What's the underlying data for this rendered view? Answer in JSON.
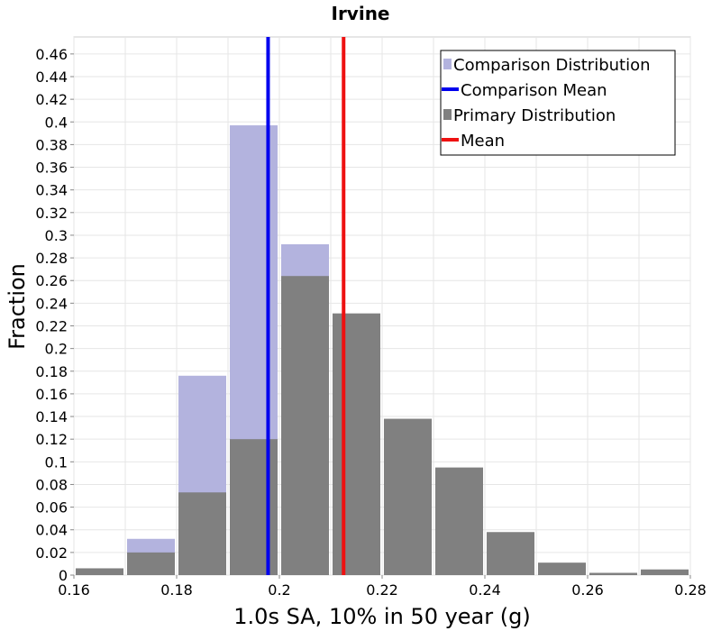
{
  "chart_data": {
    "type": "bar",
    "title": "Irvine",
    "xlabel": "1.0s SA, 10% in 50 year (g)",
    "ylabel": "Fraction",
    "xlim": [
      0.16,
      0.28
    ],
    "ylim": [
      0,
      0.475
    ],
    "x_ticks": [
      "0.16",
      "0.18",
      "0.2",
      "0.22",
      "0.24",
      "0.26",
      "0.28"
    ],
    "y_ticks": [
      "0",
      "0.02",
      "0.04",
      "0.06",
      "0.08",
      "0.1",
      "0.12",
      "0.14",
      "0.16",
      "0.18",
      "0.2",
      "0.22",
      "0.24",
      "0.26",
      "0.28",
      "0.3",
      "0.32",
      "0.34",
      "0.36",
      "0.38",
      "0.4",
      "0.42",
      "0.44",
      "0.46"
    ],
    "grid": true,
    "legend_position": "top-right",
    "bin_width": 0.01,
    "series": [
      {
        "name": "Comparison Distribution",
        "kind": "histogram",
        "color": "#b3b3de",
        "bins": [
          {
            "x0": 0.17,
            "value": 0.032
          },
          {
            "x0": 0.18,
            "value": 0.176
          },
          {
            "x0": 0.19,
            "value": 0.397
          },
          {
            "x0": 0.2,
            "value": 0.292
          }
        ]
      },
      {
        "name": "Primary Distribution",
        "kind": "histogram",
        "color": "#808080",
        "bins": [
          {
            "x0": 0.16,
            "value": 0.006
          },
          {
            "x0": 0.17,
            "value": 0.02
          },
          {
            "x0": 0.18,
            "value": 0.073
          },
          {
            "x0": 0.19,
            "value": 0.12
          },
          {
            "x0": 0.2,
            "value": 0.264
          },
          {
            "x0": 0.21,
            "value": 0.231
          },
          {
            "x0": 0.22,
            "value": 0.138
          },
          {
            "x0": 0.23,
            "value": 0.095
          },
          {
            "x0": 0.24,
            "value": 0.038
          },
          {
            "x0": 0.25,
            "value": 0.011
          },
          {
            "x0": 0.26,
            "value": 0.002
          },
          {
            "x0": 0.27,
            "value": 0.005
          }
        ]
      },
      {
        "name": "Comparison Mean",
        "kind": "vline",
        "color": "#0000ee",
        "x": 0.1978
      },
      {
        "name": "Mean",
        "kind": "vline",
        "color": "#ee1111",
        "x": 0.2125
      }
    ],
    "legend": [
      {
        "label": "Comparison Distribution",
        "symbol": "square",
        "color": "#b3b3de"
      },
      {
        "label": "Comparison Mean",
        "symbol": "line",
        "color": "#0000ee"
      },
      {
        "label": "Primary Distribution",
        "symbol": "square",
        "color": "#808080"
      },
      {
        "label": "Mean",
        "symbol": "line",
        "color": "#ee1111"
      }
    ]
  }
}
